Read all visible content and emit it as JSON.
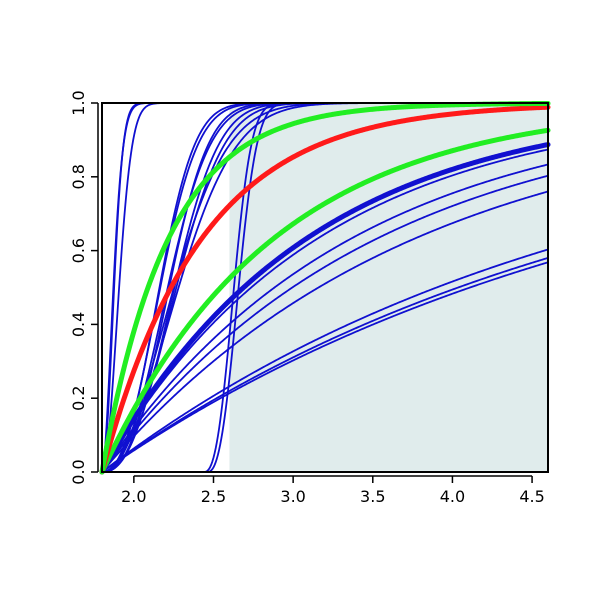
{
  "chart_data": {
    "type": "line",
    "title": "",
    "xlabel": "",
    "ylabel": "",
    "xlim": [
      1.8,
      4.6
    ],
    "ylim": [
      0.0,
      1.0
    ],
    "x_ticks": [
      "2.0",
      "2.5",
      "3.0",
      "3.5",
      "4.0",
      "4.5"
    ],
    "y_ticks": [
      "0.0",
      "0.2",
      "0.4",
      "0.6",
      "0.8",
      "1.0"
    ],
    "grid": false,
    "legend": "none",
    "shaded_region": {
      "x_from": 2.6,
      "x_to": 4.6,
      "color": "#e0ecec"
    },
    "colors": {
      "blue": "#1010d0",
      "red": "#ff1a1a",
      "green": "#22ee22"
    },
    "series": [
      {
        "color": "blue",
        "width": "thin",
        "x0": 1.8,
        "rate": 120.0,
        "shape": 2.0
      },
      {
        "color": "blue",
        "width": "thin",
        "x0": 1.8,
        "rate": 80.0,
        "shape": 1.8
      },
      {
        "color": "blue",
        "width": "thin",
        "x0": 1.8,
        "rate": 60.0,
        "shape": 2.0
      },
      {
        "color": "blue",
        "width": "thin",
        "x0": 1.8,
        "rate": 8.0,
        "shape": 2.4
      },
      {
        "color": "blue",
        "width": "thin",
        "x0": 1.8,
        "rate": 7.0,
        "shape": 2.3
      },
      {
        "color": "blue",
        "width": "thin",
        "x0": 1.8,
        "rate": 6.0,
        "shape": 2.5
      },
      {
        "color": "blue",
        "width": "thin",
        "x0": 1.8,
        "rate": 5.3,
        "shape": 2.3
      },
      {
        "color": "blue",
        "width": "thin",
        "x0": 1.8,
        "rate": 4.6,
        "shape": 2.4
      },
      {
        "color": "blue",
        "width": "thin",
        "x0": 1.8,
        "rate": 4.0,
        "shape": 2.3
      },
      {
        "color": "blue",
        "width": "thin",
        "x0": 1.8,
        "rate": 3.4,
        "shape": 2.0
      },
      {
        "color": "blue",
        "width": "thin",
        "x0": 1.8,
        "rate": 3.0,
        "shape": 2.0
      },
      {
        "color": "blue",
        "width": "thin",
        "x0": 2.44,
        "rate": 45.0,
        "shape": 2.5
      },
      {
        "color": "blue",
        "width": "thin",
        "x0": 2.46,
        "rate": 40.0,
        "shape": 2.5
      },
      {
        "color": "blue",
        "width": "thick",
        "x0": 1.8,
        "rate": 0.78,
        "shape": 1.0
      },
      {
        "color": "blue",
        "width": "thin",
        "x0": 1.8,
        "rate": 0.74,
        "shape": 1.0
      },
      {
        "color": "blue",
        "width": "thin",
        "x0": 1.8,
        "rate": 0.64,
        "shape": 1.0
      },
      {
        "color": "blue",
        "width": "thin",
        "x0": 1.8,
        "rate": 0.58,
        "shape": 1.0
      },
      {
        "color": "blue",
        "width": "thin",
        "x0": 1.8,
        "rate": 0.51,
        "shape": 1.0
      },
      {
        "color": "blue",
        "width": "thin",
        "x0": 1.8,
        "rate": 0.33,
        "shape": 1.0
      },
      {
        "color": "blue",
        "width": "thin",
        "x0": 1.8,
        "rate": 0.31,
        "shape": 1.0
      },
      {
        "color": "blue",
        "width": "thin",
        "x0": 1.8,
        "rate": 0.3,
        "shape": 1.0
      },
      {
        "color": "green",
        "width": "thick",
        "x0": 1.8,
        "rate": 0.93,
        "shape": 1.0
      },
      {
        "color": "red",
        "width": "thick",
        "x0": 1.8,
        "rate": 1.6,
        "shape": 1.0
      },
      {
        "color": "green",
        "width": "thick",
        "x0": 1.8,
        "rate": 2.4,
        "shape": 1.0
      }
    ]
  }
}
